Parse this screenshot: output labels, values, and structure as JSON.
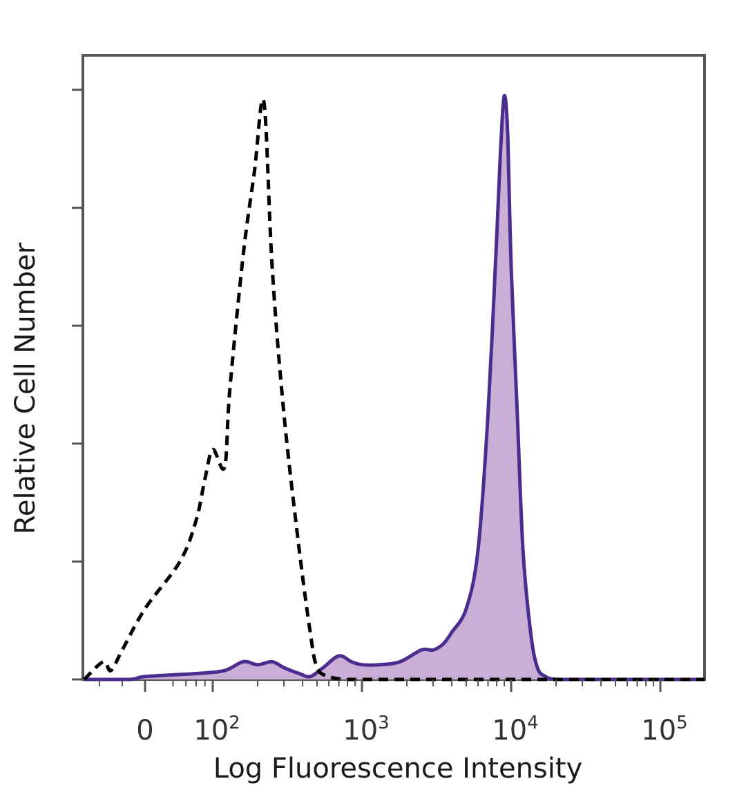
{
  "chart_data": {
    "type": "area",
    "xlabel": "Log Fluorescence Intensity",
    "ylabel": "Relative Cell Number",
    "x_scale": "biexponential",
    "xlim": [
      -80,
      250000
    ],
    "ylim": [
      0,
      100
    ],
    "grid": false,
    "x_tick_labels": [
      {
        "value": 0,
        "base": "0",
        "exp": ""
      },
      {
        "value": 100,
        "base": "10",
        "exp": "2"
      },
      {
        "value": 1000,
        "base": "10",
        "exp": "3"
      },
      {
        "value": 10000,
        "base": "10",
        "exp": "4"
      },
      {
        "value": 100000,
        "base": "10",
        "exp": "5"
      }
    ],
    "colors": {
      "stained_line": "#4b2d8f",
      "stained_fill": "#c9afd6",
      "control_line": "#000000",
      "frame": "#555555"
    },
    "series": [
      {
        "style": "dashed",
        "x": [
          -80,
          -55,
          -45,
          -30,
          0,
          30,
          60,
          80,
          100,
          120,
          130,
          160,
          190,
          220,
          250,
          300,
          380,
          450,
          500,
          600,
          800,
          1500,
          5000,
          10000,
          50000,
          250000
        ],
        "values": [
          0,
          3,
          1.5,
          5,
          12,
          20,
          27,
          34,
          39,
          36,
          49,
          72,
          86,
          98,
          70,
          45,
          22,
          8,
          2,
          0.5,
          0,
          0,
          0,
          0,
          0,
          0
        ]
      },
      {
        "style": "solid-filled",
        "x": [
          -80,
          -20,
          0,
          60,
          120,
          160,
          200,
          250,
          300,
          380,
          450,
          550,
          700,
          850,
          1000,
          1300,
          1800,
          2500,
          3000,
          3500,
          4000,
          5000,
          6000,
          7000,
          8000,
          8500,
          9000,
          9500,
          10000,
          11000,
          12000,
          13500,
          15000,
          17000,
          20000,
          30000,
          250000
        ],
        "values": [
          0,
          0,
          0.5,
          1,
          1.5,
          3,
          2.5,
          3,
          2,
          1,
          0.5,
          2,
          4,
          3,
          2.5,
          2.5,
          3,
          5,
          5,
          6,
          8,
          12,
          22,
          45,
          75,
          90,
          99,
          92,
          70,
          45,
          22,
          8,
          2,
          0.5,
          0,
          0,
          0
        ]
      }
    ]
  }
}
